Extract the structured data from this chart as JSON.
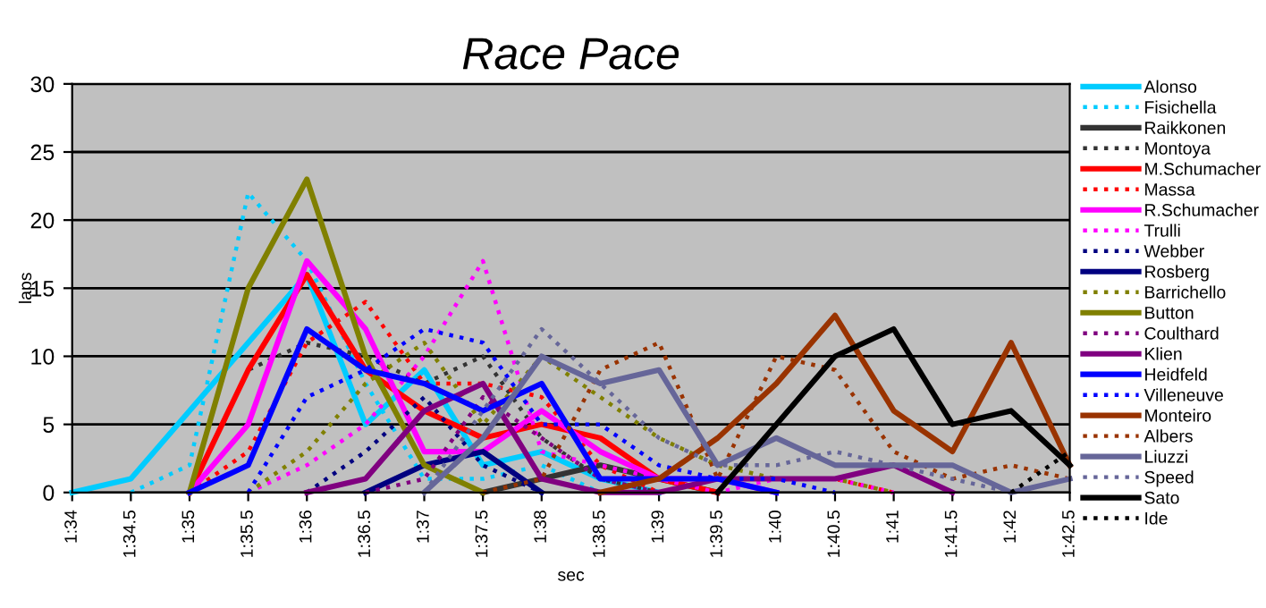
{
  "chart_data": {
    "type": "line",
    "title": "Race Pace",
    "xlabel": "sec",
    "ylabel": "laps",
    "categories": [
      "1:34",
      "1:34.5",
      "1:35",
      "1:35.5",
      "1:36",
      "1:36.5",
      "1:37",
      "1:37.5",
      "1:38",
      "1:38.5",
      "1:39",
      "1:39.5",
      "1:40",
      "1:40.5",
      "1:41",
      "1:41.5",
      "1:42",
      "1:42.5"
    ],
    "ylim": [
      0,
      30
    ],
    "yticks": [
      0,
      5,
      10,
      15,
      20,
      25,
      30
    ],
    "grid": "y",
    "legend": "right",
    "series": [
      {
        "name": "Alonso",
        "color": "#00ccff",
        "line_style": "solid",
        "values": [
          0,
          1,
          6,
          11,
          16,
          5,
          9,
          2,
          3,
          1,
          0,
          null,
          null,
          null,
          null,
          null,
          null,
          null
        ]
      },
      {
        "name": "Fisichella",
        "color": "#00ccff",
        "line_style": "dotted",
        "values": [
          null,
          0,
          2,
          22,
          17,
          8,
          1,
          1,
          2,
          0,
          null,
          null,
          null,
          null,
          null,
          null,
          null,
          null
        ]
      },
      {
        "name": "Raikkonen",
        "color": "#333333",
        "line_style": "solid",
        "values": [
          null,
          null,
          null,
          null,
          null,
          null,
          null,
          0,
          1,
          2,
          1,
          0,
          null,
          null,
          null,
          null,
          null,
          null
        ]
      },
      {
        "name": "Montoya",
        "color": "#333333",
        "line_style": "dotted",
        "values": [
          null,
          null,
          0,
          9,
          11,
          10,
          8,
          10,
          4,
          1,
          0,
          null,
          null,
          null,
          null,
          null,
          null,
          null
        ]
      },
      {
        "name": "M.Schumacher",
        "color": "#ff0000",
        "line_style": "solid",
        "values": [
          null,
          null,
          0,
          9,
          16,
          9,
          6,
          4,
          5,
          4,
          1,
          0,
          null,
          null,
          null,
          null,
          null,
          null
        ]
      },
      {
        "name": "Massa",
        "color": "#ff0000",
        "line_style": "dotted",
        "values": [
          null,
          null,
          0,
          3,
          11,
          14,
          8,
          8,
          7,
          2,
          0,
          1,
          1,
          1,
          0,
          null,
          null,
          null
        ]
      },
      {
        "name": "R.Schumacher",
        "color": "#ff00ff",
        "line_style": "solid",
        "values": [
          null,
          null,
          0,
          5,
          17,
          12,
          3,
          3,
          6,
          3,
          1,
          1,
          0,
          null,
          null,
          null,
          null,
          null
        ]
      },
      {
        "name": "Trulli",
        "color": "#ff00ff",
        "line_style": "dotted",
        "values": [
          null,
          null,
          null,
          0,
          2,
          5,
          10,
          17,
          3,
          2,
          1,
          0,
          1,
          1,
          0,
          null,
          null,
          null
        ]
      },
      {
        "name": "Webber",
        "color": "#000080",
        "line_style": "dotted",
        "values": [
          null,
          null,
          null,
          null,
          0,
          3,
          7,
          2,
          0,
          null,
          null,
          null,
          null,
          null,
          null,
          null,
          null,
          null
        ]
      },
      {
        "name": "Rosberg",
        "color": "#000080",
        "line_style": "solid",
        "values": [
          null,
          null,
          null,
          null,
          null,
          0,
          2,
          3,
          0,
          null,
          null,
          null,
          null,
          null,
          null,
          null,
          null,
          null
        ]
      },
      {
        "name": "Barrichello",
        "color": "#808000",
        "line_style": "dotted",
        "values": [
          null,
          null,
          null,
          0,
          3,
          8,
          11,
          5,
          10,
          7,
          4,
          2,
          1,
          1,
          0,
          null,
          null,
          null
        ]
      },
      {
        "name": "Button",
        "color": "#808000",
        "line_style": "solid",
        "values": [
          null,
          null,
          0,
          15,
          23,
          10,
          2,
          0,
          null,
          null,
          null,
          null,
          null,
          null,
          null,
          null,
          null,
          null
        ]
      },
      {
        "name": "Coulthard",
        "color": "#800080",
        "line_style": "dotted",
        "values": [
          null,
          null,
          null,
          null,
          null,
          0,
          1,
          7,
          4,
          1,
          0,
          null,
          null,
          null,
          null,
          null,
          null,
          null
        ]
      },
      {
        "name": "Klien",
        "color": "#800080",
        "line_style": "solid",
        "values": [
          null,
          null,
          null,
          null,
          0,
          1,
          6,
          8,
          1,
          0,
          0,
          1,
          1,
          1,
          2,
          0,
          null,
          null
        ]
      },
      {
        "name": "Heidfeld",
        "color": "#0000ff",
        "line_style": "solid",
        "values": [
          null,
          null,
          0,
          2,
          12,
          9,
          8,
          6,
          8,
          1,
          1,
          1,
          0,
          null,
          null,
          null,
          null,
          null
        ]
      },
      {
        "name": "Villeneuve",
        "color": "#0000ff",
        "line_style": "dotted",
        "values": [
          null,
          null,
          null,
          0,
          7,
          9,
          12,
          11,
          5,
          5,
          2,
          1,
          1,
          0,
          null,
          null,
          null,
          null
        ]
      },
      {
        "name": "Monteiro",
        "color": "#993300",
        "line_style": "solid",
        "values": [
          null,
          null,
          null,
          null,
          null,
          null,
          null,
          null,
          null,
          0,
          1,
          4,
          8,
          13,
          6,
          3,
          11,
          2
        ]
      },
      {
        "name": "Albers",
        "color": "#993300",
        "line_style": "dotted",
        "values": [
          null,
          null,
          null,
          null,
          null,
          null,
          null,
          0,
          1,
          9,
          11,
          1,
          10,
          9,
          3,
          1,
          2,
          1
        ]
      },
      {
        "name": "Liuzzi",
        "color": "#666699",
        "line_style": "solid",
        "values": [
          null,
          null,
          null,
          null,
          null,
          null,
          0,
          4,
          10,
          8,
          9,
          2,
          4,
          2,
          2,
          2,
          0,
          1
        ]
      },
      {
        "name": "Speed",
        "color": "#666699",
        "line_style": "dotted",
        "values": [
          null,
          null,
          null,
          null,
          null,
          null,
          0,
          6,
          12,
          8,
          4,
          2,
          2,
          3,
          2,
          1,
          0,
          1
        ]
      },
      {
        "name": "Sato",
        "color": "#000000",
        "line_style": "solid",
        "values": [
          null,
          null,
          null,
          null,
          null,
          null,
          null,
          null,
          null,
          null,
          null,
          0,
          5,
          10,
          12,
          5,
          6,
          2
        ]
      },
      {
        "name": "Ide",
        "color": "#000000",
        "line_style": "dotted",
        "values": [
          null,
          null,
          null,
          null,
          null,
          null,
          null,
          null,
          null,
          null,
          null,
          null,
          null,
          null,
          null,
          null,
          0,
          3
        ]
      }
    ]
  }
}
